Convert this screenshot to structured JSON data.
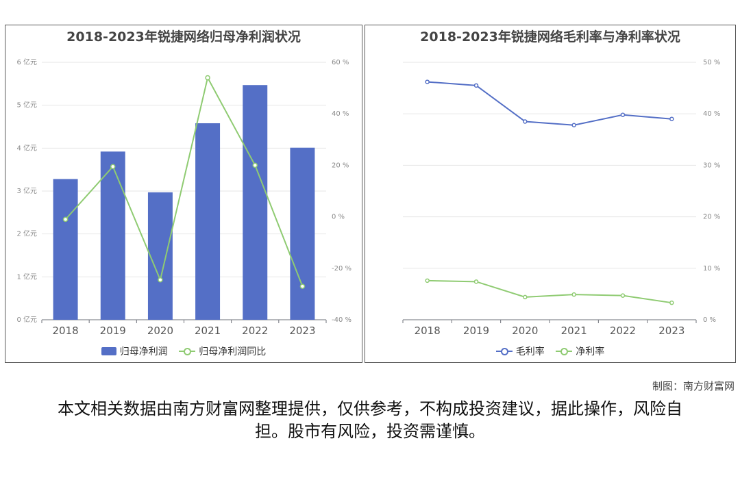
{
  "chart_data": [
    {
      "type": "bar",
      "title": "2018-2023年锐捷网络归母净利润状况",
      "categories": [
        "2018",
        "2019",
        "2020",
        "2021",
        "2022",
        "2023"
      ],
      "series": [
        {
          "name": "归母净利润",
          "type": "bar",
          "axis": "left",
          "values": [
            3.28,
            3.92,
            2.97,
            4.58,
            5.47,
            4.01
          ]
        },
        {
          "name": "归母净利润同比",
          "type": "line",
          "axis": "right",
          "values": [
            -1,
            19.5,
            -24.5,
            54,
            20,
            -27
          ]
        }
      ],
      "y_left": {
        "unit": "亿元",
        "ylim": [
          0,
          6
        ],
        "ticks": [
          "0 亿元",
          "1 亿元",
          "2 亿元",
          "3 亿元",
          "4 亿元",
          "5 亿元",
          "6 亿元"
        ]
      },
      "y_right": {
        "unit": "%",
        "ylim": [
          -40,
          60
        ],
        "ticks": [
          "-40 %",
          "-20 %",
          "0 %",
          "20 %",
          "40 %",
          "60 %"
        ]
      },
      "colors": {
        "bar": "#546FC6",
        "line": "#8FCB72"
      },
      "legend": "bottom"
    },
    {
      "type": "line",
      "title": "2018-2023年锐捷网络毛利率与净利率状况",
      "categories": [
        "2018",
        "2019",
        "2020",
        "2021",
        "2022",
        "2023"
      ],
      "series": [
        {
          "name": "毛利率",
          "values": [
            46.2,
            45.5,
            38.5,
            37.8,
            39.8,
            39.0
          ]
        },
        {
          "name": "净利率",
          "values": [
            7.6,
            7.4,
            4.4,
            4.9,
            4.7,
            3.3
          ]
        }
      ],
      "y_right": {
        "unit": "%",
        "ylim": [
          0,
          50
        ],
        "ticks": [
          "0 %",
          "10 %",
          "20 %",
          "30 %",
          "40 %",
          "50 %"
        ]
      },
      "colors": {
        "毛利率": "#546FC6",
        "净利率": "#8FCB72"
      },
      "legend": "bottom"
    }
  ],
  "footer": {
    "credit": "制图：南方财富网",
    "disclaimer": "本文相关数据由南方财富网整理提供，仅供参考，不构成投资建议，据此操作，风险自担。股市有风险，投资需谨慎。"
  }
}
